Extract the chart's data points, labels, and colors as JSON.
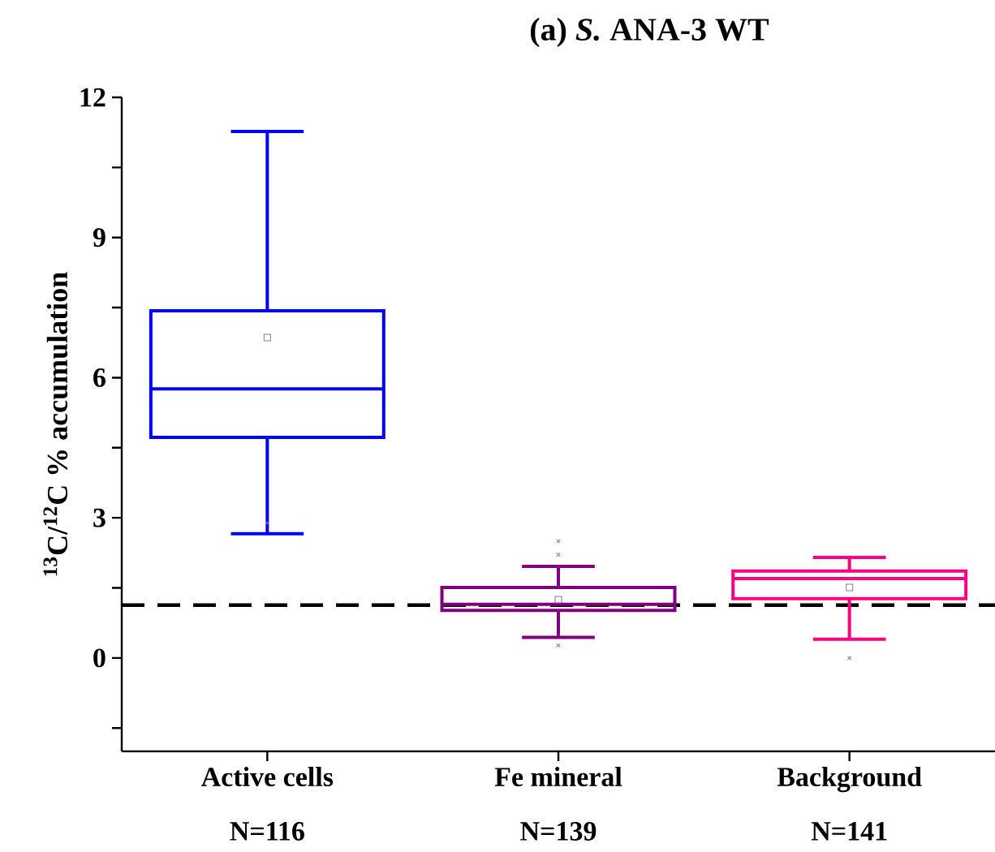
{
  "chart_data": {
    "type": "box",
    "title": "(a) *S.* ANA-3 WT",
    "ylabel": "$^{13}$C/$^{12}$C % accumulation",
    "categories": [
      "Active cells",
      "Fe mineral",
      "Background"
    ],
    "colors": [
      "#0000ff",
      "#800080",
      "#ff0080"
    ],
    "boxes": [
      {
        "low": 2.66,
        "q1": 4.72,
        "median": 5.76,
        "q3": 7.43,
        "high": 11.27,
        "mean": 6.86,
        "outliers": [
          2.89
        ]
      },
      {
        "low": 0.44,
        "q1": 1.02,
        "median": 1.15,
        "q3": 1.51,
        "high": 1.96,
        "mean": 1.25,
        "outliers": [
          0.27,
          2.21,
          2.5
        ]
      },
      {
        "low": 0.4,
        "q1": 1.27,
        "median": 1.7,
        "q3": 1.86,
        "high": 2.15,
        "mean": 1.51,
        "outliers": [
          0.0
        ]
      }
    ],
    "ylim": [
      -2,
      12
    ],
    "yticks": [
      {
        "value": -1.5,
        "label": null
      },
      0,
      {
        "value": 1.5,
        "label": null
      },
      3,
      {
        "value": 4.5,
        "label": null
      },
      6,
      {
        "value": 7.5,
        "label": null
      },
      9,
      {
        "value": 10.5,
        "label": null
      },
      12
    ],
    "ref_lines": [
      {
        "axis": "y",
        "value": 1.13,
        "color": "#000000",
        "line_style": "dashed"
      }
    ],
    "annotations": [
      "N=116",
      "N=139",
      "N=141"
    ]
  }
}
